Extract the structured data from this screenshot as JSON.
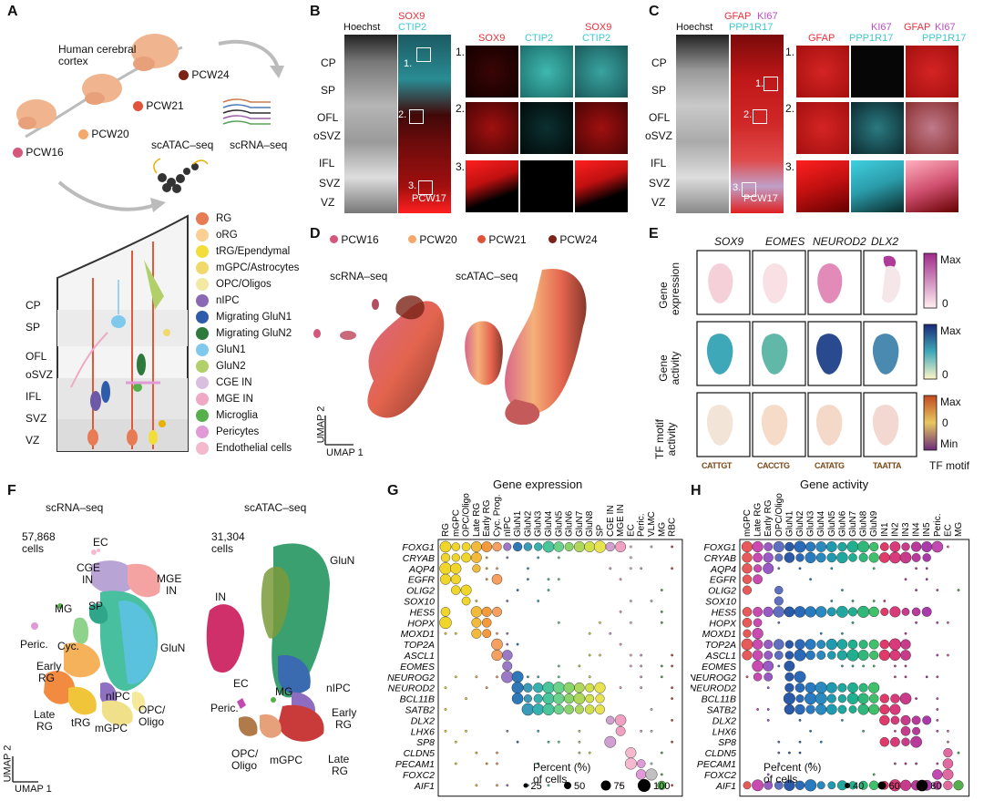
{
  "panels": [
    "A",
    "B",
    "C",
    "D",
    "E",
    "F",
    "G",
    "H"
  ],
  "panelA": {
    "title": "Human cerebral cortex",
    "ages": [
      {
        "label": "PCW16",
        "color": "#d4577c"
      },
      {
        "label": "PCW20",
        "color": "#f4a86a"
      },
      {
        "label": "PCW21",
        "color": "#e0533a"
      },
      {
        "label": "PCW24",
        "color": "#7b2316"
      }
    ],
    "assays": [
      "scATAC–seq",
      "scRNA–seq"
    ],
    "layers": [
      "CP",
      "SP",
      "OFL",
      "oSVZ",
      "IFL",
      "SVZ",
      "VZ"
    ],
    "celltypes": [
      {
        "name": "RG",
        "color": "#e77b54"
      },
      {
        "name": "oRG",
        "color": "#f9cf93"
      },
      {
        "name": "tRG/Ependymal",
        "color": "#f3dd3a"
      },
      {
        "name": "mGPC/Astrocytes",
        "color": "#f0d86a"
      },
      {
        "name": "OPC/Oligos",
        "color": "#f3e8a4"
      },
      {
        "name": "nIPC",
        "color": "#8b6ab5"
      },
      {
        "name": "Migrating GluN1",
        "color": "#2e5caa"
      },
      {
        "name": "Migrating GluN2",
        "color": "#2e7a3d"
      },
      {
        "name": "GluN1",
        "color": "#7fc9ec"
      },
      {
        "name": "GluN2",
        "color": "#b2d06a"
      },
      {
        "name": "CGE IN",
        "color": "#d8bfe0"
      },
      {
        "name": "MGE IN",
        "color": "#f0a9c4"
      },
      {
        "name": "Microglia",
        "color": "#55b04c"
      },
      {
        "name": "Pericytes",
        "color": "#e09ad6"
      },
      {
        "name": "Endothelial cells",
        "color": "#f5b9cd"
      }
    ]
  },
  "panelB": {
    "channels": {
      "hoechst": "Hoechst",
      "sox9": "SOX9",
      "ctip2": "CTIP2"
    },
    "sample": "PCW17",
    "regions": [
      "1.",
      "2.",
      "3."
    ]
  },
  "panelC": {
    "channels": {
      "hoechst": "Hoechst",
      "gfap": "GFAP",
      "ki67": "KI67",
      "ppp1r17": "PPP1R17"
    },
    "sample": "PCW17",
    "regions": [
      "1.",
      "2.",
      "3."
    ]
  },
  "panelD": {
    "legend": [
      "PCW16",
      "PCW20",
      "PCW21",
      "PCW24"
    ],
    "titles": [
      "scRNA–seq",
      "scATAC–seq"
    ],
    "axes": {
      "y": "UMAP 2",
      "x": "UMAP 1"
    }
  },
  "panelE": {
    "genes": [
      "SOX9",
      "EOMES",
      "NEUROD2",
      "DLX2"
    ],
    "rows": [
      "Gene expression",
      "Gene activity",
      "TF motif activity"
    ],
    "scale_max": "Max",
    "scale_zero": "0",
    "scale_min": "Min",
    "motif_label": "TF motif",
    "motifs": [
      "CATTGT",
      "CACCTG",
      "CATATG",
      "TAATTA"
    ]
  },
  "panelF": {
    "rna_title": "scRNA–seq",
    "rna_count": "57,868",
    "rna_unit": "cells",
    "atac_title": "scATAC–seq",
    "atac_count": "31,304",
    "atac_unit": "cells",
    "rna_labels": [
      "EC",
      "CGE",
      "IN",
      "MGE",
      "IN",
      "MG",
      "SP",
      "GluN",
      "Peric.",
      "Cyc.",
      "Early",
      "RG",
      "nIPC",
      "Late",
      "RG",
      "tRG",
      "mGPC",
      "OPC/",
      "Oligo"
    ],
    "atac_labels": [
      "GluN",
      "IN",
      "MG",
      "EC",
      "Peric.",
      "nIPC",
      "Early",
      "RG",
      "OPC/",
      "Oligo",
      "mGPC",
      "Late",
      "RG"
    ],
    "axes": {
      "y": "UMAP 2",
      "x": "UMAP 1"
    }
  },
  "panelG": {
    "title": "Gene expression",
    "columns": [
      "RG",
      "mGPC",
      "OPC/Oligo",
      "Late RG",
      "Early RG",
      "Cyc. Prog.",
      "nIPC",
      "GluN1",
      "GluN2",
      "GluN3",
      "GluN4",
      "GluN5",
      "GluN6",
      "GluN7",
      "GluN8",
      "SP",
      "CGE IN",
      "MGE IN",
      "EC",
      "Peric.",
      "VLMC",
      "MG",
      "RBC"
    ],
    "genes": [
      "FOXG1",
      "CRYAB",
      "AQP4",
      "EGFR",
      "OLIG2",
      "SOX10",
      "HES5",
      "HOPX",
      "MOXD1",
      "TOP2A",
      "ASCL1",
      "EOMES",
      "NEUROG2",
      "NEUROD2",
      "BCL11B",
      "SATB2",
      "DLX2",
      "LHX6",
      "SP8",
      "CLDN5",
      "PECAM1",
      "FOXC2",
      "AIF1"
    ],
    "legend_title": "Percent (%)",
    "legend_sub": "of cells",
    "legend_values": [
      "25",
      "50",
      "75",
      "100"
    ]
  },
  "panelH": {
    "title": "Gene activity",
    "columns": [
      "mGPC",
      "Late RG",
      "Early RG",
      "OPC/Oligo",
      "GluN1",
      "GluN2",
      "GluN3",
      "GluN4",
      "GluN5",
      "GluN6",
      "GluN7",
      "GluN8",
      "GluN9",
      "IN1",
      "IN2",
      "IN3",
      "IN4",
      "IN5",
      "Peric.",
      "EC",
      "MG"
    ],
    "genes": [
      "FOXG1",
      "CRYAB",
      "AQP4",
      "EGFR",
      "OLIG2",
      "SOX10",
      "HES5",
      "HOPX",
      "MOXD1",
      "TOP2A",
      "ASCL1",
      "EOMES",
      "NEUROG2",
      "NEUROD2",
      "BCL11B",
      "SATB2",
      "DLX2",
      "LHX6",
      "SP8",
      "CLDN5",
      "PECAM1",
      "FOXC2",
      "AIF1"
    ],
    "legend_title": "Percent (%)",
    "legend_sub": "of cells",
    "legend_values": [
      "40",
      "60",
      "80"
    ]
  }
}
